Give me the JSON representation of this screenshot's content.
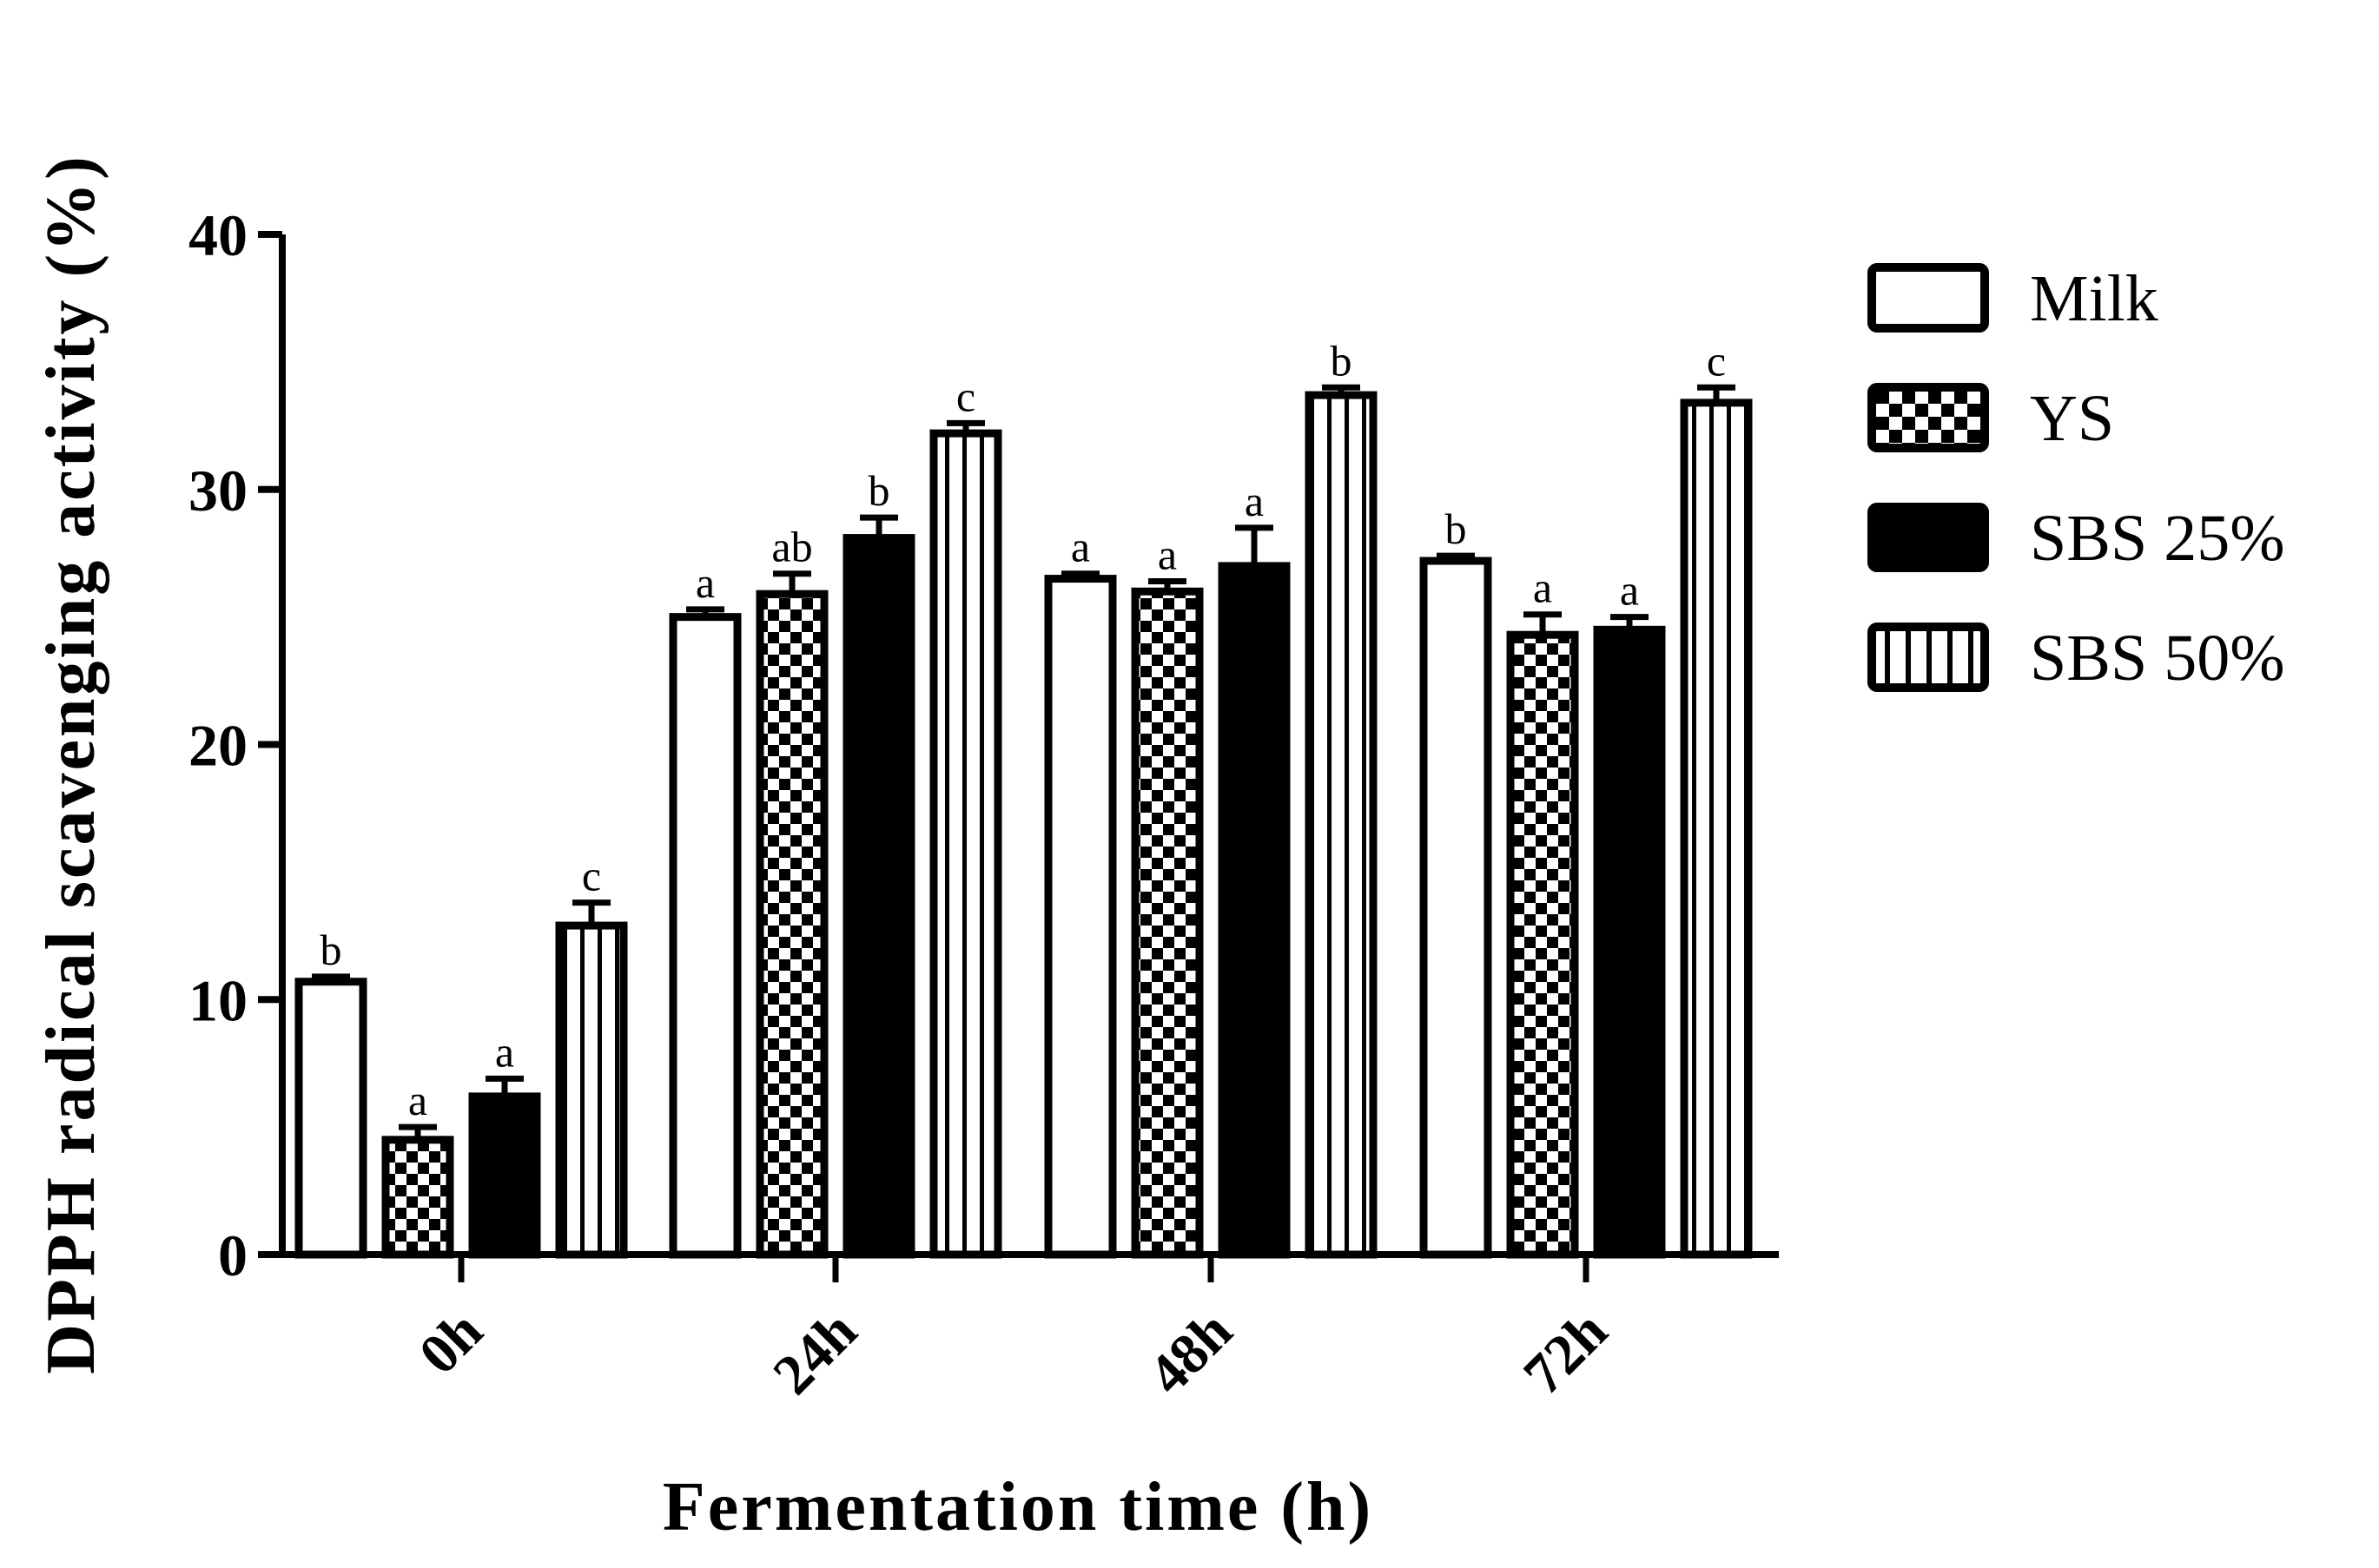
{
  "chart_data": {
    "type": "bar",
    "title": "",
    "xlabel": "Fermentation time (h)",
    "ylabel": "DPPH radical scavenging activity (%)",
    "ylim": [
      0,
      40
    ],
    "yticks": [
      "0",
      "10",
      "20",
      "30",
      "40"
    ],
    "categories": [
      "0h",
      "24h",
      "48h",
      "72h"
    ],
    "legend_position": "right",
    "series": [
      {
        "name": "Milk",
        "pattern": "open",
        "values": [
          10.7,
          25.0,
          26.5,
          27.2
        ],
        "errors": [
          0.2,
          0.3,
          0.2,
          0.2
        ],
        "letters": [
          "b",
          "a",
          "a",
          "b"
        ]
      },
      {
        "name": "YS",
        "pattern": "checker",
        "values": [
          4.5,
          25.9,
          26.0,
          24.3
        ],
        "errors": [
          0.5,
          0.8,
          0.4,
          0.8
        ],
        "letters": [
          "a",
          "ab",
          "a",
          "a"
        ]
      },
      {
        "name": "SBS 25%",
        "pattern": "solid",
        "values": [
          6.2,
          28.1,
          27.0,
          24.5
        ],
        "errors": [
          0.7,
          0.8,
          1.5,
          0.5
        ],
        "letters": [
          "a",
          "b",
          "a",
          "a"
        ]
      },
      {
        "name": "SBS 50%",
        "pattern": "vertical-stripes",
        "values": [
          12.9,
          32.2,
          33.7,
          33.4
        ],
        "errors": [
          0.9,
          0.4,
          0.3,
          0.6
        ],
        "letters": [
          "c",
          "c",
          "b",
          "c"
        ]
      }
    ],
    "colors": {
      "stroke": "#000000",
      "fill": "#000000",
      "background": "#ffffff"
    }
  }
}
